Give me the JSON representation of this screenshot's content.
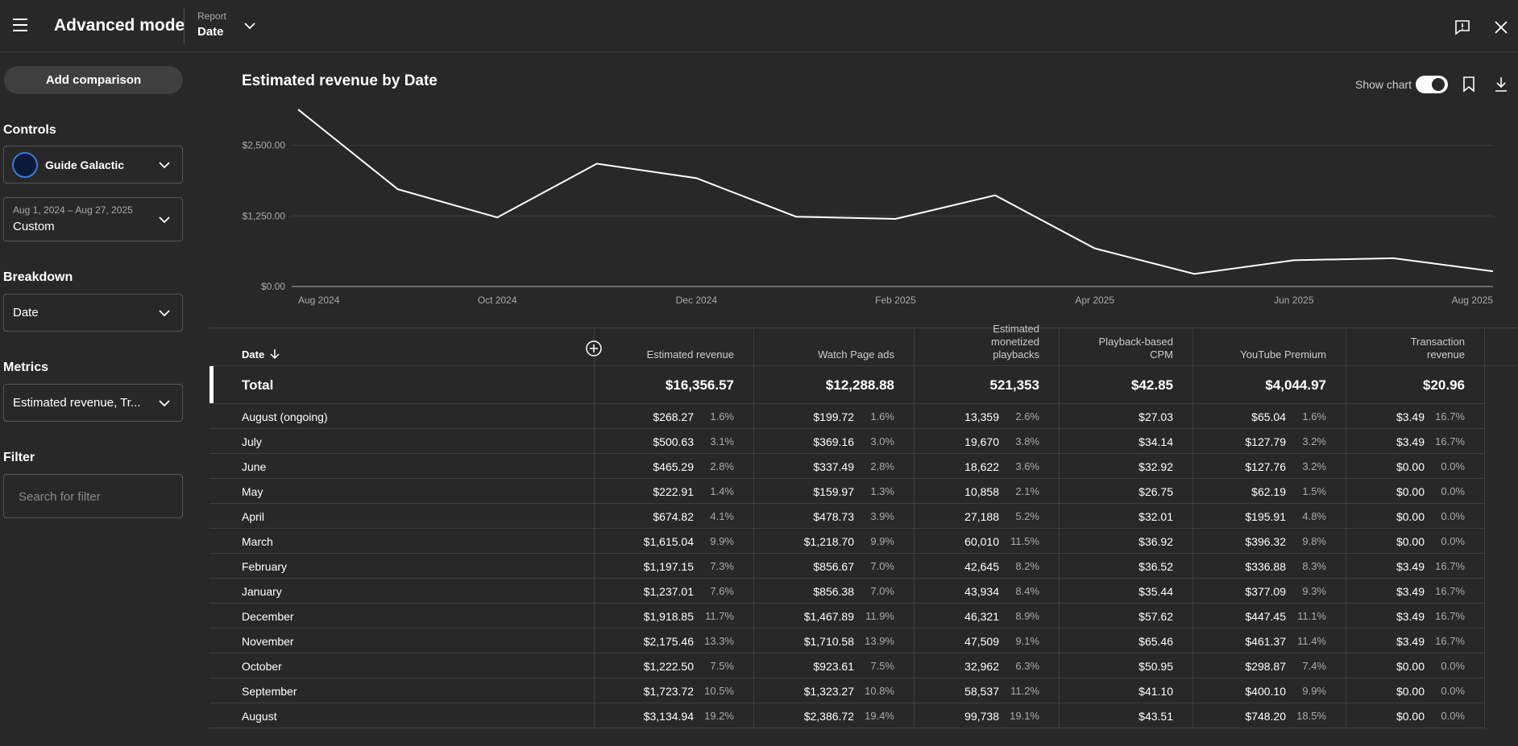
{
  "header": {
    "title": "Advanced mode",
    "report_label": "Report",
    "report_value": "Date"
  },
  "sidebar": {
    "add_comparison": "Add comparison",
    "controls_title": "Controls",
    "channel": "Guide Galactic",
    "date_range": "Aug 1, 2024 – Aug 27, 2025",
    "date_preset": "Custom",
    "breakdown_title": "Breakdown",
    "breakdown_value": "Date",
    "metrics_title": "Metrics",
    "metrics_value": "Estimated revenue, Tr...",
    "filter_title": "Filter",
    "filter_placeholder": "Search for filter"
  },
  "chart_toolbar": {
    "show_chart": "Show chart"
  },
  "chart_data": {
    "type": "line",
    "title": "Estimated revenue by Date",
    "categories": [
      "Aug 2024",
      null,
      "Oct 2024",
      null,
      "Dec 2024",
      null,
      "Feb 2025",
      null,
      "Apr 2025",
      null,
      "Jun 2025",
      null,
      "Aug 2025"
    ],
    "values": [
      3134.94,
      1723.72,
      1222.5,
      2175.46,
      1918.85,
      1237.01,
      1197.15,
      1615.04,
      674.82,
      222.91,
      465.29,
      500.63,
      268.27
    ],
    "color": "#ffffff",
    "ylim": [
      0,
      3150
    ],
    "yticks": [
      {
        "value": 0,
        "label": "$0.00"
      },
      {
        "value": 1250,
        "label": "$1,250.00"
      },
      {
        "value": 2500,
        "label": "$2,500.00"
      }
    ],
    "grid": true
  },
  "table": {
    "columns": [
      "Date",
      "Estimated revenue",
      "Watch Page ads",
      "Estimated monetized playbacks",
      "Playback-based CPM",
      "YouTube Premium",
      "Transaction revenue"
    ],
    "total": [
      "Total",
      "$16,356.57",
      "$12,288.88",
      "521,353",
      "$42.85",
      "$4,044.97",
      "$20.96"
    ],
    "rows": [
      [
        "August (ongoing)",
        [
          "$268.27",
          "1.6%"
        ],
        [
          "$199.72",
          "1.6%"
        ],
        [
          "13,359",
          "2.6%"
        ],
        [
          "$27.03"
        ],
        [
          "$65.04",
          "1.6%"
        ],
        [
          "$3.49",
          "16.7%"
        ]
      ],
      [
        "July",
        [
          "$500.63",
          "3.1%"
        ],
        [
          "$369.16",
          "3.0%"
        ],
        [
          "19,670",
          "3.8%"
        ],
        [
          "$34.14"
        ],
        [
          "$127.79",
          "3.2%"
        ],
        [
          "$3.49",
          "16.7%"
        ]
      ],
      [
        "June",
        [
          "$465.29",
          "2.8%"
        ],
        [
          "$337.49",
          "2.8%"
        ],
        [
          "18,622",
          "3.6%"
        ],
        [
          "$32.92"
        ],
        [
          "$127.76",
          "3.2%"
        ],
        [
          "$0.00",
          "0.0%"
        ]
      ],
      [
        "May",
        [
          "$222.91",
          "1.4%"
        ],
        [
          "$159.97",
          "1.3%"
        ],
        [
          "10,858",
          "2.1%"
        ],
        [
          "$26.75"
        ],
        [
          "$62.19",
          "1.5%"
        ],
        [
          "$0.00",
          "0.0%"
        ]
      ],
      [
        "April",
        [
          "$674.82",
          "4.1%"
        ],
        [
          "$478.73",
          "3.9%"
        ],
        [
          "27,188",
          "5.2%"
        ],
        [
          "$32.01"
        ],
        [
          "$195.91",
          "4.8%"
        ],
        [
          "$0.00",
          "0.0%"
        ]
      ],
      [
        "March",
        [
          "$1,615.04",
          "9.9%"
        ],
        [
          "$1,218.70",
          "9.9%"
        ],
        [
          "60,010",
          "11.5%"
        ],
        [
          "$36.92"
        ],
        [
          "$396.32",
          "9.8%"
        ],
        [
          "$0.00",
          "0.0%"
        ]
      ],
      [
        "February",
        [
          "$1,197.15",
          "7.3%"
        ],
        [
          "$856.67",
          "7.0%"
        ],
        [
          "42,645",
          "8.2%"
        ],
        [
          "$36.52"
        ],
        [
          "$336.88",
          "8.3%"
        ],
        [
          "$3.49",
          "16.7%"
        ]
      ],
      [
        "January",
        [
          "$1,237.01",
          "7.6%"
        ],
        [
          "$856.38",
          "7.0%"
        ],
        [
          "43,934",
          "8.4%"
        ],
        [
          "$35.44"
        ],
        [
          "$377.09",
          "9.3%"
        ],
        [
          "$3.49",
          "16.7%"
        ]
      ],
      [
        "December",
        [
          "$1,918.85",
          "11.7%"
        ],
        [
          "$1,467.89",
          "11.9%"
        ],
        [
          "46,321",
          "8.9%"
        ],
        [
          "$57.62"
        ],
        [
          "$447.45",
          "11.1%"
        ],
        [
          "$3.49",
          "16.7%"
        ]
      ],
      [
        "November",
        [
          "$2,175.46",
          "13.3%"
        ],
        [
          "$1,710.58",
          "13.9%"
        ],
        [
          "47,509",
          "9.1%"
        ],
        [
          "$65.46"
        ],
        [
          "$461.37",
          "11.4%"
        ],
        [
          "$3.49",
          "16.7%"
        ]
      ],
      [
        "October",
        [
          "$1,222.50",
          "7.5%"
        ],
        [
          "$923.61",
          "7.5%"
        ],
        [
          "32,962",
          "6.3%"
        ],
        [
          "$50.95"
        ],
        [
          "$298.87",
          "7.4%"
        ],
        [
          "$0.00",
          "0.0%"
        ]
      ],
      [
        "September",
        [
          "$1,723.72",
          "10.5%"
        ],
        [
          "$1,323.27",
          "10.8%"
        ],
        [
          "58,537",
          "11.2%"
        ],
        [
          "$41.10"
        ],
        [
          "$400.10",
          "9.9%"
        ],
        [
          "$0.00",
          "0.0%"
        ]
      ],
      [
        "August",
        [
          "$3,134.94",
          "19.2%"
        ],
        [
          "$2,386.72",
          "19.4%"
        ],
        [
          "99,738",
          "19.1%"
        ],
        [
          "$43.51"
        ],
        [
          "$748.20",
          "18.5%"
        ],
        [
          "$0.00",
          "0.0%"
        ]
      ]
    ]
  }
}
